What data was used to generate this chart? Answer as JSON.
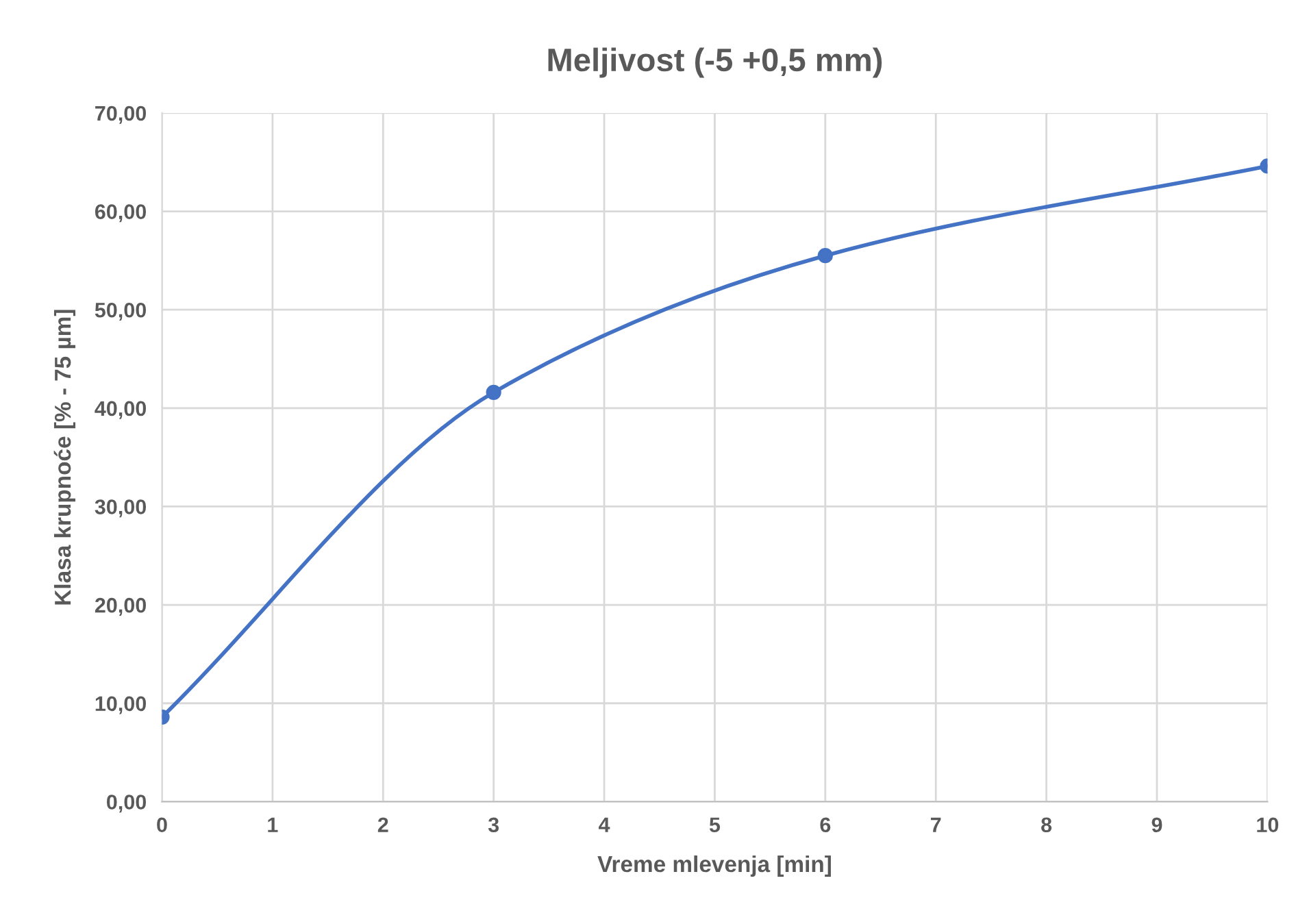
{
  "chart_data": {
    "type": "line",
    "title": "Meljivost (-5 +0,5 mm)",
    "xlabel": "Vreme mlevenja [min]",
    "ylabel": "Klasa krupnoće [% - 75 µm]",
    "x": [
      0,
      3,
      6,
      10
    ],
    "series": [
      {
        "color": "#4472c4",
        "values": [
          8.6,
          41.6,
          55.5,
          64.6
        ]
      }
    ],
    "xlim": [
      0,
      10
    ],
    "xticks": [
      0,
      1,
      2,
      3,
      4,
      5,
      6,
      7,
      8,
      9,
      10
    ],
    "ylim": [
      0,
      70
    ],
    "yticks": [
      {
        "value": 0,
        "label": "0,00"
      },
      {
        "value": 10,
        "label": "10,00"
      },
      {
        "value": 20,
        "label": "20,00"
      },
      {
        "value": 30,
        "label": "30,00"
      },
      {
        "value": 40,
        "label": "40,00"
      },
      {
        "value": 50,
        "label": "50,00"
      },
      {
        "value": 60,
        "label": "60,00"
      },
      {
        "value": 70,
        "label": "70,00"
      }
    ],
    "grid": true,
    "marker": "circle",
    "line_style": "solid"
  }
}
